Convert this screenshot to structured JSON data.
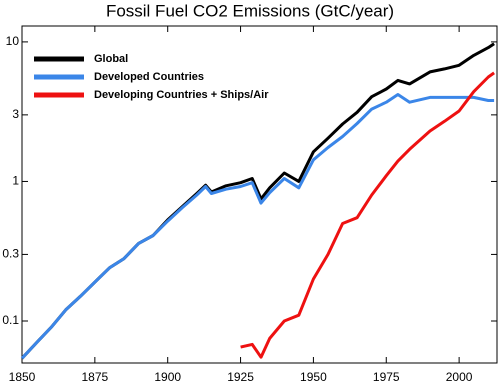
{
  "chart_data": {
    "type": "line",
    "title": "Fossil Fuel CO2 Emissions (GtC/year)",
    "x": [
      1850,
      1855,
      1860,
      1865,
      1870,
      1875,
      1880,
      1885,
      1890,
      1895,
      1900,
      1905,
      1910,
      1913,
      1915,
      1920,
      1925,
      1929,
      1932,
      1935,
      1940,
      1945,
      1950,
      1955,
      1960,
      1965,
      1970,
      1975,
      1979,
      1983,
      1990,
      1995,
      2000,
      2005,
      2010,
      2012
    ],
    "series": [
      {
        "name": "Global",
        "color": "#000000",
        "values": [
          0.054,
          0.07,
          0.09,
          0.12,
          0.15,
          0.19,
          0.24,
          0.28,
          0.36,
          0.41,
          0.53,
          0.66,
          0.82,
          0.94,
          0.84,
          0.93,
          0.98,
          1.05,
          0.75,
          0.9,
          1.15,
          1.0,
          1.63,
          2.04,
          2.58,
          3.13,
          4.05,
          4.6,
          5.3,
          5.0,
          6.1,
          6.4,
          6.8,
          8.0,
          9.1,
          9.7
        ]
      },
      {
        "name": "Developed Countries",
        "color": "#3b86e8",
        "values": [
          0.054,
          0.07,
          0.09,
          0.12,
          0.15,
          0.19,
          0.24,
          0.28,
          0.36,
          0.41,
          0.52,
          0.65,
          0.8,
          0.92,
          0.82,
          0.88,
          0.92,
          0.98,
          0.7,
          0.83,
          1.05,
          0.9,
          1.43,
          1.75,
          2.1,
          2.6,
          3.3,
          3.7,
          4.2,
          3.7,
          4.0,
          4.0,
          4.0,
          4.0,
          3.8,
          3.8
        ]
      },
      {
        "name": "Developing Countries + Ships/Air",
        "color": "#ee1111",
        "values": [
          null,
          null,
          null,
          null,
          null,
          null,
          null,
          null,
          null,
          null,
          null,
          null,
          null,
          null,
          null,
          null,
          0.065,
          0.068,
          0.055,
          0.075,
          0.1,
          0.11,
          0.2,
          0.3,
          0.5,
          0.55,
          0.8,
          1.1,
          1.4,
          1.7,
          2.3,
          2.7,
          3.2,
          4.4,
          5.6,
          6.0
        ]
      }
    ],
    "xlim": [
      1850,
      2013
    ],
    "xticks": [
      1850,
      1875,
      1900,
      1925,
      1950,
      1975,
      2000
    ],
    "ylim": [
      0.05,
      13
    ],
    "yticks": [
      0.1,
      0.3,
      1,
      3,
      10
    ],
    "log_y": true,
    "grid": false,
    "legend": "upper left"
  }
}
